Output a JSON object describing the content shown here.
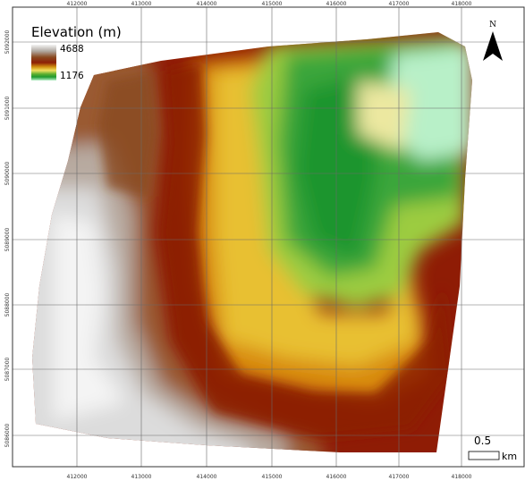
{
  "legend": {
    "title": "Elevation (m)",
    "max_label": "4688",
    "min_label": "1176",
    "max_value": 4688,
    "min_value": 1176,
    "ramp_colors": [
      "#f4f4f4",
      "#b0a8a0",
      "#8a4a20",
      "#8c1f06",
      "#d09010",
      "#f0e060",
      "#60b030",
      "#1f9a2f",
      "#b8f0c8"
    ]
  },
  "north_arrow": {
    "label": "N"
  },
  "scale_bar": {
    "distance": "0.5",
    "unit": "km"
  },
  "grid": {
    "x_ticks": [
      "412000",
      "413000",
      "414000",
      "415000",
      "416000",
      "417000",
      "418000"
    ],
    "y_ticks": [
      "5092000",
      "5091000",
      "5090000",
      "5089000",
      "5088000",
      "5087000",
      "5086000"
    ]
  },
  "colors": {
    "gridline": "#6a6a6a",
    "frame": "#333333",
    "text": "#000000"
  }
}
